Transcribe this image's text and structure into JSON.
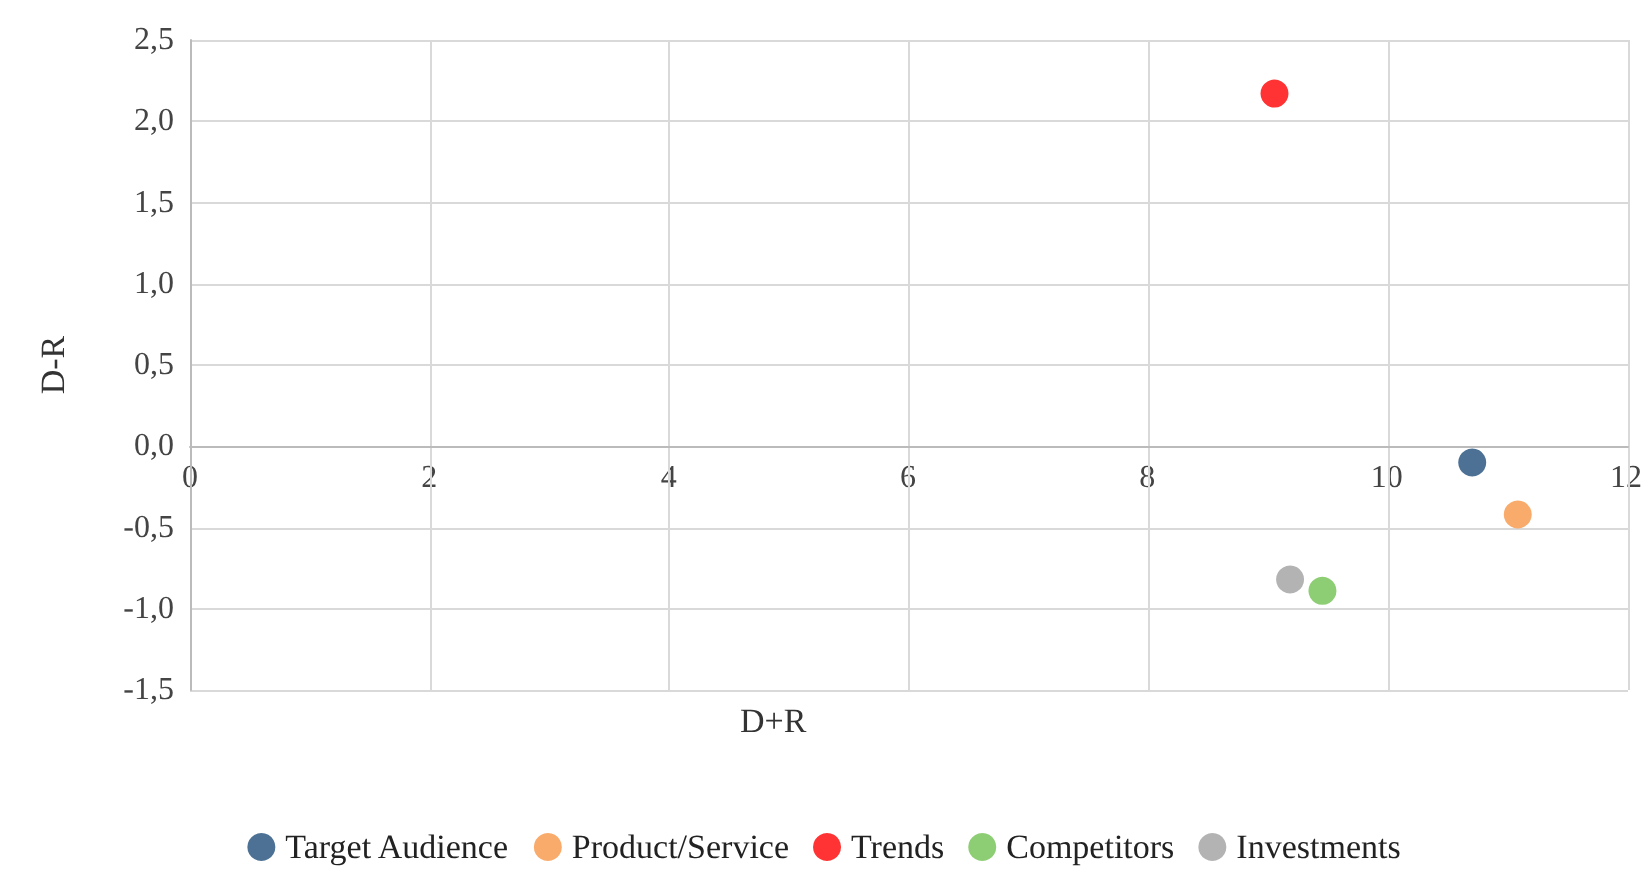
{
  "chart_data": {
    "type": "scatter",
    "xlabel": "D+R",
    "ylabel": "D-R",
    "xlim": [
      0,
      12
    ],
    "xticks": [
      0,
      2,
      4,
      6,
      8,
      10,
      12
    ],
    "ylim": [
      -1.5,
      2.5
    ],
    "yticks": [
      {
        "value": -1.5,
        "label": "-1,5"
      },
      {
        "value": -1,
        "label": "-1,0"
      },
      {
        "value": -0.5,
        "label": "-0,5"
      },
      {
        "value": 0,
        "label": "0,0"
      },
      {
        "value": 0.5,
        "label": "0,5"
      },
      {
        "value": 1,
        "label": "1,0"
      },
      {
        "value": 1.5,
        "label": "1,5"
      },
      {
        "value": 2,
        "label": "2,0"
      },
      {
        "value": 2.5,
        "label": "2,5"
      }
    ],
    "grid": true,
    "legend": "bottom",
    "marker": "circle",
    "series": [
      {
        "name": "Target Audience",
        "color": "#1f4e79",
        "x": [
          10.7
        ],
        "values": [
          -0.1
        ]
      },
      {
        "name": "Product/Service",
        "color": "#f79646",
        "x": [
          11.08
        ],
        "values": [
          -0.42
        ]
      },
      {
        "name": "Trends",
        "color": "#ff0000",
        "x": [
          9.05
        ],
        "values": [
          2.17
        ]
      },
      {
        "name": "Competitors",
        "color": "#70c050",
        "x": [
          9.45
        ],
        "values": [
          -0.89
        ]
      },
      {
        "name": "Investments",
        "color": "#a0a0a0",
        "x": [
          9.18
        ],
        "values": [
          -0.82
        ]
      }
    ]
  }
}
